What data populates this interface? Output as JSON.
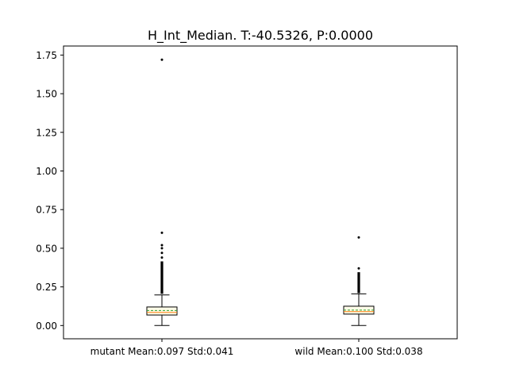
{
  "chart_data": {
    "type": "box",
    "title": "H_Int_Median. T:-40.5326, P:0.0000",
    "xlabel": "",
    "ylabel": "",
    "ylim": [
      -0.085,
      1.81
    ],
    "yticks": [
      0.0,
      0.25,
      0.5,
      0.75,
      1.0,
      1.25,
      1.5,
      1.75
    ],
    "ytick_labels": [
      "0.00",
      "0.25",
      "0.50",
      "0.75",
      "1.00",
      "1.25",
      "1.50",
      "1.75"
    ],
    "grid": false,
    "series": [
      {
        "category": "mutant Mean:0.097 Std:0.041",
        "whisker_low": 0.0,
        "q1": 0.068,
        "median": 0.085,
        "mean": 0.097,
        "q3": 0.12,
        "whisker_high": 0.198,
        "outliers_range": [
          0.205,
          0.415
        ],
        "outliers": [
          0.44,
          0.47,
          0.5,
          0.52,
          0.6,
          1.72
        ]
      },
      {
        "category": "wild Mean:0.100 Std:0.038",
        "whisker_low": 0.0,
        "q1": 0.074,
        "median": 0.09,
        "mean": 0.1,
        "q3": 0.125,
        "whisker_high": 0.205,
        "outliers_range": [
          0.21,
          0.345
        ],
        "outliers": [
          0.37,
          0.57
        ]
      }
    ],
    "colors": {
      "box": "#000000",
      "median": "#ff7f0e",
      "mean": "#2ca02c",
      "box_fill": "#fffce8"
    }
  }
}
